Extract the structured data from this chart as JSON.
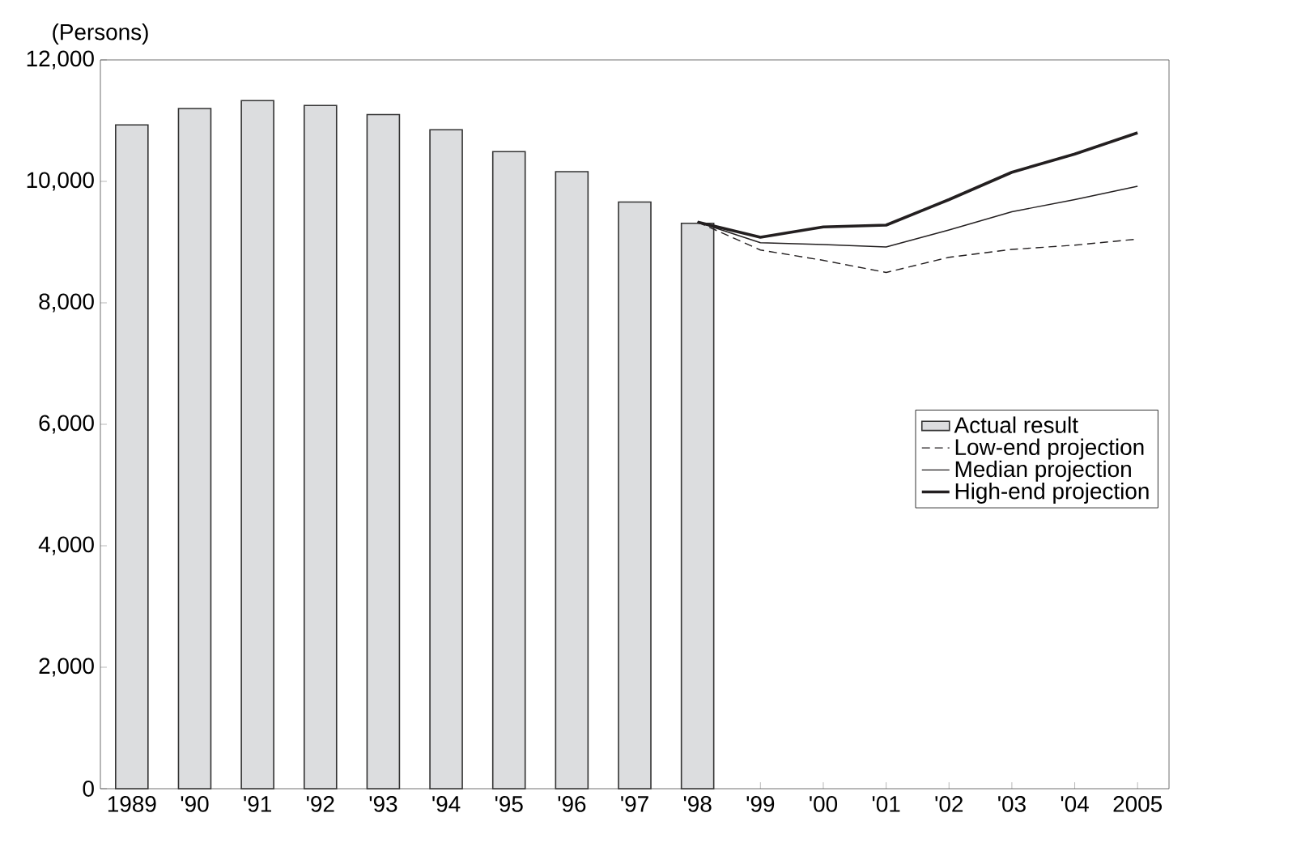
{
  "chart_data": {
    "type": "bar",
    "ylabel": "(Persons)",
    "categories": [
      "1989",
      "'90",
      "'91",
      "'92",
      "'93",
      "'94",
      "'95",
      "'96",
      "'97",
      "'98",
      "'99",
      "'00",
      "'01",
      "'02",
      "'03",
      "'04",
      "2005"
    ],
    "series": [
      {
        "name": "Actual result",
        "color": "#dcdddf",
        "values": [
          10930,
          11200,
          11330,
          11250,
          11100,
          10850,
          10490,
          10160,
          9660,
          9310,
          null,
          null,
          null,
          null,
          null,
          null,
          null
        ]
      },
      {
        "name": "Low-end projection",
        "type": "line",
        "line_style": "dashed",
        "color": "#231f20",
        "values": [
          null,
          null,
          null,
          null,
          null,
          null,
          null,
          null,
          null,
          9330,
          8870,
          8700,
          8500,
          8750,
          8880,
          8950,
          9050
        ]
      },
      {
        "name": "Median projection",
        "type": "line",
        "line_style": "solid",
        "color": "#231f20",
        "values": [
          null,
          null,
          null,
          null,
          null,
          null,
          null,
          null,
          null,
          9330,
          8990,
          8960,
          8920,
          9200,
          9500,
          9700,
          9920
        ]
      },
      {
        "name": "High-end projection",
        "type": "line",
        "line_style": "solid",
        "color": "#231f20",
        "values": [
          null,
          null,
          null,
          null,
          null,
          null,
          null,
          null,
          null,
          9330,
          9080,
          9250,
          9280,
          9700,
          10150,
          10450,
          10800
        ]
      }
    ],
    "ylim": [
      0,
      12000
    ],
    "yticks": [
      0,
      {
        "value": 2000,
        "label": "2,000"
      },
      {
        "value": 4000,
        "label": "4,000"
      },
      {
        "value": 6000,
        "label": "6,000"
      },
      {
        "value": 8000,
        "label": "8,000"
      },
      {
        "value": 10000,
        "label": "10,000"
      },
      {
        "value": 12000,
        "label": "12,000"
      }
    ],
    "grid": false,
    "legend": "right",
    "marker": "none"
  }
}
